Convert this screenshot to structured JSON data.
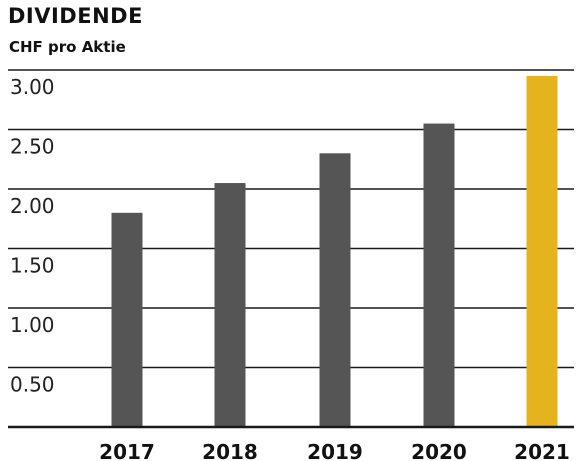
{
  "chart_data": {
    "type": "bar",
    "title": "DIVIDENDE",
    "subtitle": "CHF pro Aktie",
    "categories": [
      "2017",
      "2018",
      "2019",
      "2020",
      "2021"
    ],
    "values": [
      1.8,
      2.05,
      2.3,
      2.55,
      2.95
    ],
    "ylim": [
      0,
      3.0
    ],
    "yticks": [
      "0.50",
      "1.00",
      "1.50",
      "2.00",
      "2.50",
      "3.00"
    ],
    "ytick_values": [
      0.5,
      1.0,
      1.5,
      2.0,
      2.5,
      3.0
    ],
    "grid": true,
    "colors": {
      "bar": "#555555",
      "highlight": "#E5B31E",
      "grid": "#1a1a1a",
      "axis": "#1a1a1a"
    },
    "highlight_index": 4
  }
}
